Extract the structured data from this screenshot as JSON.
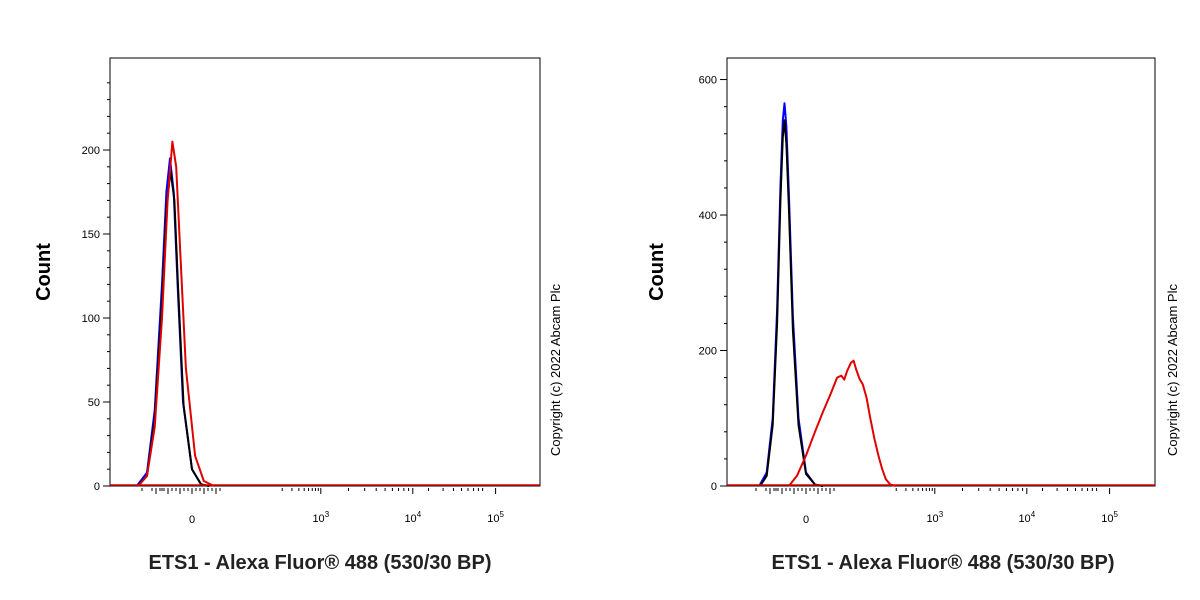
{
  "chart_data": [
    {
      "type": "line",
      "ylabel": "Count",
      "xlabel": "ETS1 - Alexa Fluor® 488 (530/30 BP)",
      "copyright": "Copyright (c) 2022 Abcam Plc",
      "ylim": [
        0,
        250
      ],
      "yticks": [
        0,
        50,
        100,
        150,
        200
      ],
      "xticks": [
        {
          "base": "0",
          "exp": ""
        },
        {
          "base": "10",
          "exp": "3"
        },
        {
          "base": "10",
          "exp": "4"
        },
        {
          "base": "10",
          "exp": "5"
        }
      ],
      "series": [
        {
          "color": "#0000ff",
          "points": [
            [
              -250,
              0
            ],
            [
              -190,
              8
            ],
            [
              -150,
              45
            ],
            [
              -115,
              120
            ],
            [
              -95,
              175
            ],
            [
              -80,
              195
            ],
            [
              -65,
              175
            ],
            [
              -50,
              120
            ],
            [
              -30,
              50
            ],
            [
              0,
              10
            ],
            [
              30,
              1
            ],
            [
              60,
              0
            ]
          ]
        },
        {
          "color": "#000000",
          "points": [
            [
              -245,
              0
            ],
            [
              -190,
              6
            ],
            [
              -150,
              40
            ],
            [
              -115,
              110
            ],
            [
              -95,
              165
            ],
            [
              -78,
              188
            ],
            [
              -62,
              170
            ],
            [
              -48,
              118
            ],
            [
              -28,
              48
            ],
            [
              0,
              10
            ],
            [
              30,
              1
            ],
            [
              60,
              0
            ]
          ]
        },
        {
          "color": "#e00000",
          "points": [
            [
              -240,
              0
            ],
            [
              -190,
              6
            ],
            [
              -150,
              35
            ],
            [
              -115,
              100
            ],
            [
              -90,
              170
            ],
            [
              -70,
              205
            ],
            [
              -55,
              190
            ],
            [
              -40,
              140
            ],
            [
              -20,
              70
            ],
            [
              10,
              18
            ],
            [
              40,
              3
            ],
            [
              80,
              0
            ]
          ]
        }
      ]
    },
    {
      "type": "line",
      "ylabel": "Count",
      "xlabel": "ETS1 - Alexa Fluor® 488 (530/30 BP)",
      "copyright": "Copyright (c) 2022 Abcam Plc",
      "ylim": [
        0,
        620
      ],
      "yticks": [
        0,
        200,
        400,
        600
      ],
      "xticks": [
        {
          "base": "0",
          "exp": ""
        },
        {
          "base": "10",
          "exp": "3"
        },
        {
          "base": "10",
          "exp": "4"
        },
        {
          "base": "10",
          "exp": "5"
        }
      ],
      "series": [
        {
          "color": "#0000ff",
          "points": [
            [
              -200,
              0
            ],
            [
              -160,
              20
            ],
            [
              -130,
              100
            ],
            [
              -110,
              260
            ],
            [
              -95,
              440
            ],
            [
              -85,
              540
            ],
            [
              -78,
              565
            ],
            [
              -70,
              530
            ],
            [
              -60,
              430
            ],
            [
              -45,
              250
            ],
            [
              -25,
              100
            ],
            [
              0,
              20
            ],
            [
              30,
              2
            ],
            [
              60,
              0
            ]
          ]
        },
        {
          "color": "#000000",
          "points": [
            [
              -195,
              0
            ],
            [
              -160,
              15
            ],
            [
              -130,
              90
            ],
            [
              -110,
              240
            ],
            [
              -95,
              420
            ],
            [
              -85,
              515
            ],
            [
              -78,
              540
            ],
            [
              -70,
              505
            ],
            [
              -60,
              410
            ],
            [
              -45,
              230
            ],
            [
              -25,
              90
            ],
            [
              0,
              18
            ],
            [
              30,
              2
            ],
            [
              60,
              0
            ]
          ]
        },
        {
          "color": "#e00000",
          "points": [
            [
              -60,
              0
            ],
            [
              -30,
              15
            ],
            [
              0,
              45
            ],
            [
              30,
              80
            ],
            [
              60,
              110
            ],
            [
              90,
              135
            ],
            [
              120,
              160
            ],
            [
              140,
              163
            ],
            [
              155,
              157
            ],
            [
              170,
              170
            ],
            [
              190,
              182
            ],
            [
              205,
              185
            ],
            [
              220,
              172
            ],
            [
              240,
              158
            ],
            [
              260,
              150
            ],
            [
              285,
              130
            ],
            [
              310,
              100
            ],
            [
              340,
              70
            ],
            [
              370,
              45
            ],
            [
              400,
              25
            ],
            [
              430,
              10
            ],
            [
              470,
              2
            ],
            [
              520,
              0
            ]
          ]
        }
      ]
    }
  ]
}
